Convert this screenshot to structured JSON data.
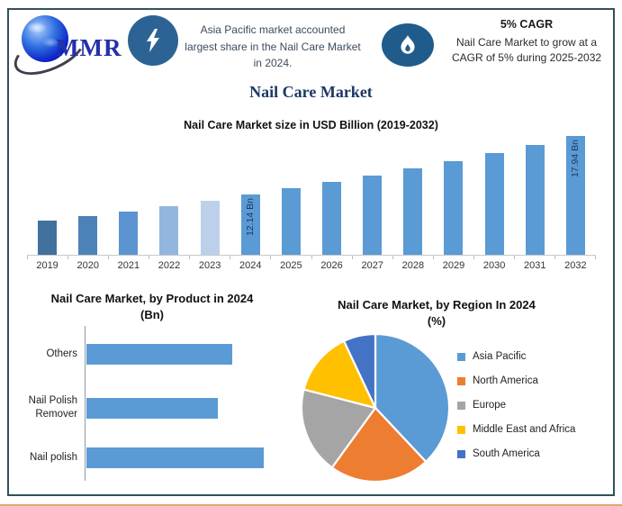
{
  "header": {
    "logo": {
      "text": "MMR"
    },
    "highlight_left": "Asia Pacific market accounted largest share in the Nail Care Market in 2024.",
    "cagr_title": "5% CAGR",
    "cagr_text": "Nail Care Market to grow at a CAGR of 5% during 2025-2032"
  },
  "page_title": "Nail Care Market",
  "colors": {
    "border": "#35505C",
    "navy": "#1F3864",
    "bar_blue": "#5B9BD5",
    "icon_blue": "#2D6394",
    "flame_blue": "#1F5C8B",
    "logo_blue": "#2430A8"
  },
  "chart_data": [
    {
      "type": "bar",
      "title": "Nail Care Market size in USD Billion (2019-2032)",
      "categories": [
        "2019",
        "2020",
        "2021",
        "2022",
        "2023",
        "2024",
        "2025",
        "2026",
        "2027",
        "2028",
        "2029",
        "2030",
        "2031",
        "2032"
      ],
      "values": [
        9.51,
        9.99,
        10.49,
        11.01,
        11.56,
        12.14,
        12.75,
        13.38,
        14.05,
        14.76,
        15.49,
        16.27,
        17.08,
        17.94
      ],
      "unit": "USD Bn",
      "data_labels": [
        {
          "category": "2024",
          "text": "12.14 Bn"
        },
        {
          "category": "2032",
          "text": "17.94 Bn"
        }
      ],
      "bar_colors": [
        "#41719C",
        "#4D82B8",
        "#5B94D0",
        "#93B6DF",
        "#BDD0E9",
        "#5B9BD5",
        "#5B9BD5",
        "#5B9BD5",
        "#5B9BD5",
        "#5B9BD5",
        "#5B9BD5",
        "#5B9BD5",
        "#5B9BD5",
        "#5B9BD5"
      ],
      "grid": false,
      "legend": false
    },
    {
      "type": "bar",
      "orientation": "horizontal",
      "title": "Nail Care Market, by Product in 2024",
      "subtitle": "(Bn)",
      "categories": [
        "Others",
        "Nail Polish Remover",
        "Nail polish"
      ],
      "values": [
        4.1,
        3.7,
        5.0
      ],
      "bar_color": "#5B9BD5",
      "grid": false,
      "legend": false
    },
    {
      "type": "pie",
      "title": "Nail Care Market, by Region In 2024",
      "subtitle": "(%)",
      "legend_position": "right",
      "slices": [
        {
          "label": "Asia Pacific",
          "value": 38,
          "color": "#5B9BD5"
        },
        {
          "label": "North America",
          "value": 22,
          "color": "#ED7D31"
        },
        {
          "label": "Europe",
          "value": 19,
          "color": "#A5A5A5"
        },
        {
          "label": "Middle East and Africa",
          "value": 14,
          "color": "#FFC000"
        },
        {
          "label": "South America",
          "value": 7,
          "color": "#4472C4"
        }
      ]
    }
  ]
}
